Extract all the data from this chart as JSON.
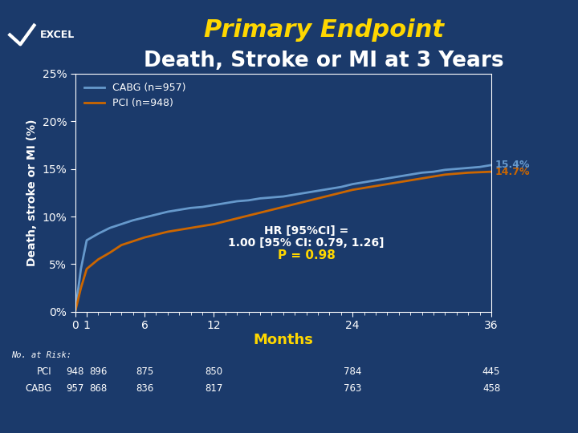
{
  "title1": "Primary Endpoint",
  "title2": "Death, Stroke or MI at 3 Years",
  "title1_color": "#FFD700",
  "title2_color": "#FFFFFF",
  "bg_color": "#1B3A6B",
  "plot_bg_color": "#1B3A6B",
  "ylabel": "Death, stroke or MI (%)",
  "xlabel": "Months",
  "xlabel_color": "#FFD700",
  "ylabel_color": "#FFFFFF",
  "ylim": [
    0,
    25
  ],
  "xlim": [
    0,
    36
  ],
  "yticks": [
    0,
    5,
    10,
    15,
    20,
    25
  ],
  "ytick_labels": [
    "0%",
    "5%",
    "10%",
    "15%",
    "20%",
    "25%"
  ],
  "xticks": [
    0,
    1,
    6,
    12,
    24,
    36
  ],
  "xtick_labels": [
    "0",
    "1",
    "6",
    "12",
    "24",
    "36"
  ],
  "cabg_color": "#6699CC",
  "pci_color": "#CC6600",
  "cabg_label": "CABG (n=957)",
  "pci_label": "PCI (n=948)",
  "cabg_final": 15.4,
  "pci_final": 14.7,
  "annotation_line1": "HR [95%CI] =",
  "annotation_line2": "1.00 [95% CI: 0.79, 1.26]",
  "annotation_line3": "P = 0.98",
  "annotation_color1": "#FFFFFF",
  "annotation_color2": "#FFFFFF",
  "annotation_color3": "#FFD700",
  "tick_color": "#FFFFFF",
  "axis_color": "#FFFFFF",
  "no_at_risk_label": "No. at Risk:",
  "pci_risk": [
    "948",
    "896",
    "875",
    "850",
    "784",
    "445"
  ],
  "cabg_risk": [
    "957",
    "868",
    "836",
    "817",
    "763",
    "458"
  ],
  "risk_x_positions": [
    0,
    1,
    6,
    12,
    24,
    36
  ],
  "cabg_x": [
    0,
    0.5,
    1,
    2,
    3,
    4,
    5,
    6,
    7,
    8,
    9,
    10,
    11,
    12,
    13,
    14,
    15,
    16,
    17,
    18,
    19,
    20,
    21,
    22,
    23,
    24,
    25,
    26,
    27,
    28,
    29,
    30,
    31,
    32,
    33,
    34,
    35,
    36
  ],
  "cabg_y": [
    0,
    4.5,
    7.5,
    8.2,
    8.8,
    9.2,
    9.6,
    9.9,
    10.2,
    10.5,
    10.7,
    10.9,
    11.0,
    11.2,
    11.4,
    11.6,
    11.7,
    11.9,
    12.0,
    12.1,
    12.3,
    12.5,
    12.7,
    12.9,
    13.1,
    13.4,
    13.6,
    13.8,
    14.0,
    14.2,
    14.4,
    14.6,
    14.7,
    14.9,
    15.0,
    15.1,
    15.2,
    15.4
  ],
  "pci_x": [
    0,
    0.5,
    1,
    2,
    3,
    4,
    5,
    6,
    7,
    8,
    9,
    10,
    11,
    12,
    13,
    14,
    15,
    16,
    17,
    18,
    19,
    20,
    21,
    22,
    23,
    24,
    25,
    26,
    27,
    28,
    29,
    30,
    31,
    32,
    33,
    34,
    35,
    36
  ],
  "pci_y": [
    0,
    2.5,
    4.5,
    5.5,
    6.2,
    7.0,
    7.4,
    7.8,
    8.1,
    8.4,
    8.6,
    8.8,
    9.0,
    9.2,
    9.5,
    9.8,
    10.1,
    10.4,
    10.7,
    11.0,
    11.3,
    11.6,
    11.9,
    12.2,
    12.5,
    12.8,
    13.0,
    13.2,
    13.4,
    13.6,
    13.8,
    14.0,
    14.2,
    14.4,
    14.5,
    14.6,
    14.65,
    14.7
  ]
}
